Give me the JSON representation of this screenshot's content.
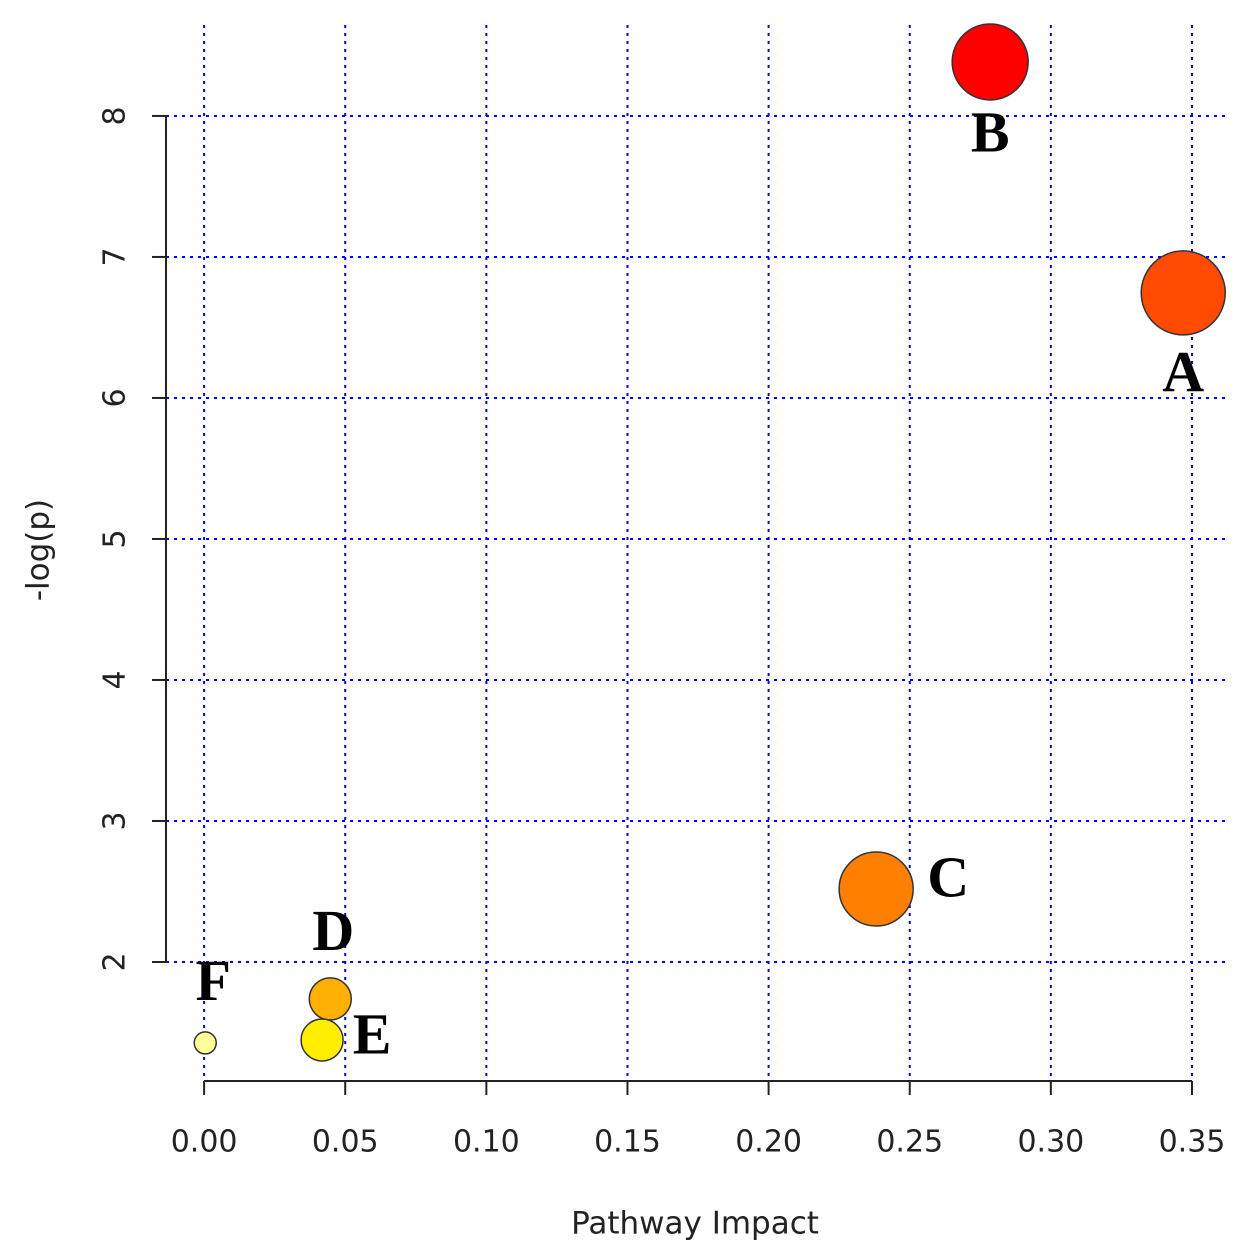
{
  "chart_data": {
    "type": "bubble",
    "x_label": "Pathway Impact",
    "y_label": "-log(p)",
    "xlim": [
      -0.0135,
      0.3617
    ],
    "ylim": [
      1.156,
      8.645
    ],
    "xticks": [
      {
        "value": 0,
        "label": "0.00"
      },
      0.05,
      {
        "value": 0.1,
        "label": "0.10"
      },
      0.15,
      {
        "value": 0.2,
        "label": "0.20"
      },
      0.25,
      {
        "value": 0.3,
        "label": "0.30"
      },
      0.35
    ],
    "yticks": [
      2,
      3,
      4,
      5,
      6,
      7,
      8
    ],
    "grid": true,
    "grid_color": "#0000ff",
    "axis_color": "#222222",
    "points": {
      "labels": [
        "A",
        "B",
        "C",
        "D",
        "E",
        "F"
      ],
      "x": [
        0.3469,
        0.2785,
        0.2381,
        0.0447,
        0.0418,
        0.0004
      ],
      "values": [
        6.745,
        8.383,
        2.518,
        1.738,
        1.447,
        1.426
      ],
      "sizes": [
        42,
        38,
        37,
        21,
        21,
        11
      ],
      "colors": [
        "#ff4a00",
        "#ff0000",
        "#ff8000",
        "#ffb000",
        "#ffee00",
        "#ffff99"
      ]
    }
  }
}
